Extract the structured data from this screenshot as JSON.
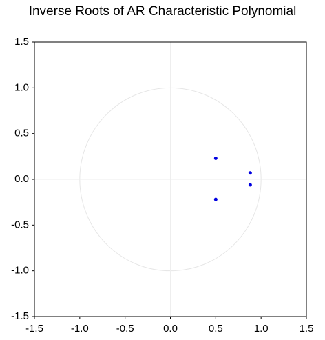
{
  "chart_data": {
    "type": "scatter",
    "title": "Inverse Roots of AR Characteristic Polynomial",
    "x": [
      0.5,
      0.88,
      0.88,
      0.5
    ],
    "values": [
      0.23,
      0.07,
      -0.06,
      -0.22
    ],
    "color": "#0000e0",
    "xlim": [
      -1.5,
      1.5
    ],
    "ylim": [
      -1.5,
      1.5
    ],
    "xticks": [
      -1.5,
      {
        "value": -1,
        "label": "-1.0"
      },
      -0.5,
      {
        "value": 0,
        "label": "0.0"
      },
      0.5,
      {
        "value": 1,
        "label": "1.0"
      },
      1.5
    ],
    "yticks": [
      -1.5,
      {
        "value": -1,
        "label": "-1.0"
      },
      -0.5,
      {
        "value": 0,
        "label": "0.0"
      },
      0.5,
      {
        "value": 1,
        "label": "1.0"
      },
      1.5
    ],
    "unit_circle": true,
    "zero_lines": true
  }
}
